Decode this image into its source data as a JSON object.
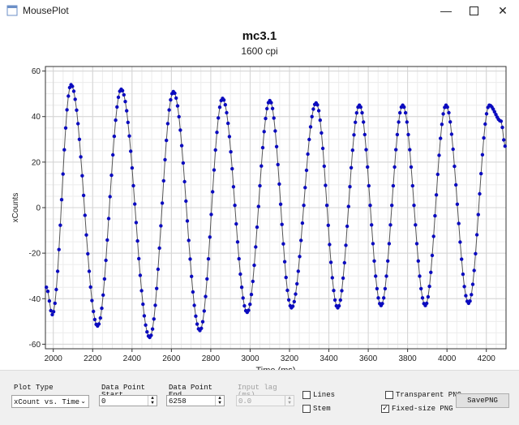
{
  "window": {
    "title": "MousePlot"
  },
  "chart_data": {
    "type": "scatter",
    "title": "mc3.1",
    "subtitle": "1600 cpi",
    "xlabel": "Time (ms)",
    "ylabel": "xCounts",
    "xlim": [
      1960,
      4300
    ],
    "ylim": [
      -62,
      62
    ],
    "xticks": [
      2000,
      2200,
      2400,
      2600,
      2800,
      3000,
      3200,
      3400,
      3600,
      3800,
      4000,
      4200
    ],
    "yticks": [
      60,
      40,
      20,
      0,
      -20,
      -40,
      -60
    ],
    "grid": true,
    "series": [
      {
        "style": "line+markers",
        "color": "#0b0bbf",
        "peaks": [
          {
            "x": 1965,
            "y": -35
          },
          {
            "x": 1995,
            "y": -47
          },
          {
            "x": 2090,
            "y": 54
          },
          {
            "x": 2225,
            "y": -52
          },
          {
            "x": 2345,
            "y": 52
          },
          {
            "x": 2490,
            "y": -57
          },
          {
            "x": 2610,
            "y": 51
          },
          {
            "x": 2745,
            "y": -54
          },
          {
            "x": 2860,
            "y": 48
          },
          {
            "x": 2985,
            "y": -46
          },
          {
            "x": 3100,
            "y": 47
          },
          {
            "x": 3210,
            "y": -44
          },
          {
            "x": 3335,
            "y": 46
          },
          {
            "x": 3445,
            "y": -44
          },
          {
            "x": 3555,
            "y": 45
          },
          {
            "x": 3665,
            "y": -43
          },
          {
            "x": 3775,
            "y": 45
          },
          {
            "x": 3890,
            "y": -43
          },
          {
            "x": 3995,
            "y": 45
          },
          {
            "x": 4110,
            "y": -42
          },
          {
            "x": 4215,
            "y": 45
          },
          {
            "x": 4275,
            "y": 38
          },
          {
            "x": 4295,
            "y": 27
          }
        ]
      }
    ]
  },
  "controls": {
    "plot_type": {
      "label": "Plot Type",
      "value": "xCount vs. Time"
    },
    "dp_start": {
      "label1": "Data Point",
      "label2": "Start",
      "value": "0"
    },
    "dp_end": {
      "label1": "Data Point",
      "label2": "End",
      "value": "6258"
    },
    "input_lag": {
      "label1": "Input lag",
      "label2": "(ms)",
      "value": "0.0"
    },
    "lines": {
      "label": "Lines",
      "checked": false
    },
    "stem": {
      "label": "Stem",
      "checked": false
    },
    "transparent_png": {
      "label": "Transparent PNG",
      "checked": false
    },
    "fixed_png": {
      "label": "Fixed-size PNG",
      "checked": true
    },
    "save_png": {
      "label": "SavePNG"
    }
  }
}
